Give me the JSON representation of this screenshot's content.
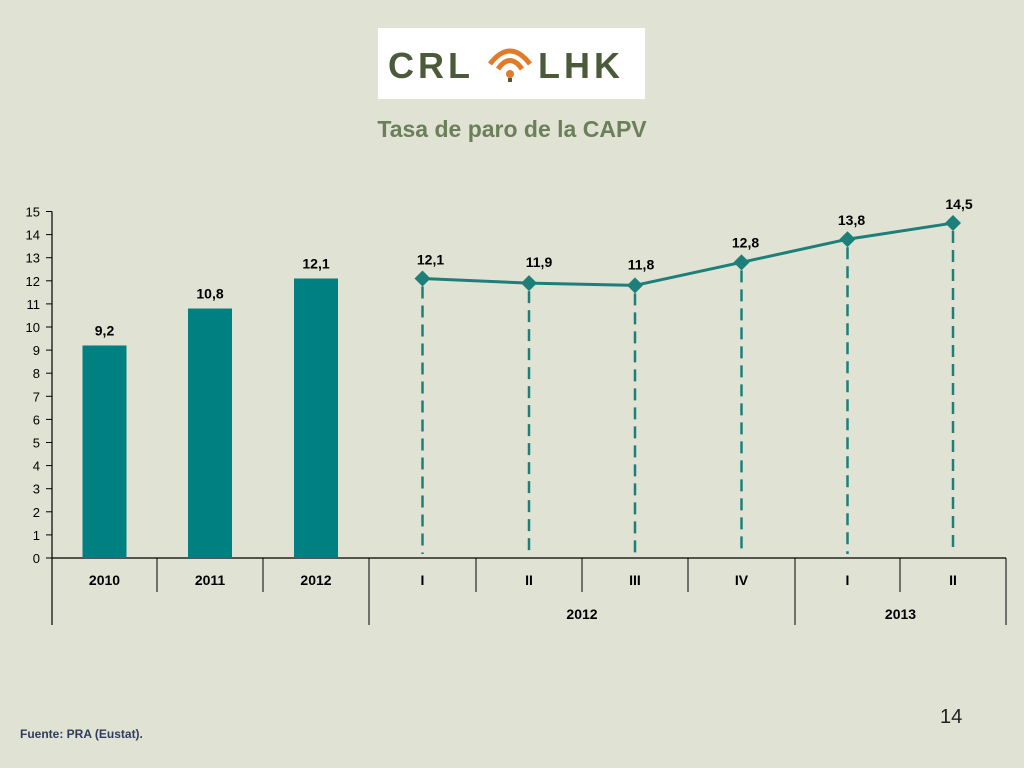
{
  "logo": {
    "left_text": "CRL",
    "right_text": "LHK",
    "colors": {
      "text": "#4a5a3a",
      "arc": "#e07b2a"
    }
  },
  "title": "Tasa de paro de la CAPV",
  "source": "Fuente: PRA (Eustat).",
  "page_number": "14",
  "chart_data": {
    "type": "bar+line",
    "title": "Tasa de paro de la CAPV",
    "ylim": [
      0,
      15
    ],
    "yticks": [
      "0",
      "1",
      "2",
      "3",
      "4",
      "5",
      "6",
      "7",
      "8",
      "9",
      "10",
      "11",
      "12",
      "13",
      "14",
      "15"
    ],
    "bars": {
      "categories": [
        "2010",
        "2011",
        "2012"
      ],
      "values": [
        9.2,
        10.8,
        12.1
      ],
      "labels": [
        "9,2",
        "10,8",
        "12,1"
      ],
      "color": "#008080"
    },
    "line": {
      "categories": [
        "I",
        "II",
        "III",
        "IV",
        "I",
        "II"
      ],
      "values": [
        12.1,
        11.9,
        11.8,
        12.8,
        13.8,
        14.5
      ],
      "labels": [
        "12,1",
        "11,9",
        "11,8",
        "12,8",
        "13,8",
        "14,5"
      ],
      "color": "#1c7f7a"
    },
    "groups": [
      {
        "label": "2012",
        "span": [
          "I",
          "IV"
        ]
      },
      {
        "label": "2013",
        "span": [
          "I",
          "II"
        ]
      }
    ],
    "grid": false
  }
}
